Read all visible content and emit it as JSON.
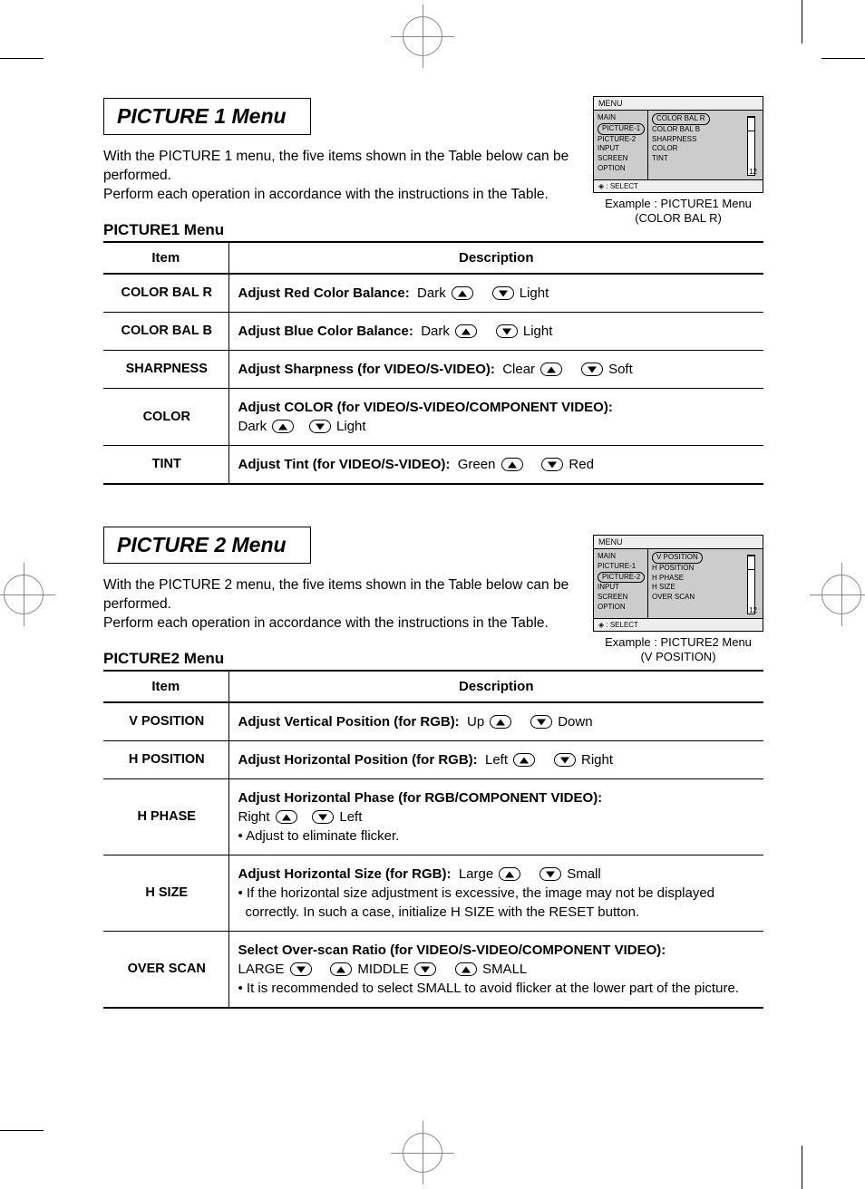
{
  "section1": {
    "title": "PICTURE 1 Menu",
    "intro": "With the PICTURE 1 menu, the five items shown in the Table below can be performed.\nPerform each operation in accordance with the instructions in the Table.",
    "subhead": "PICTURE1 Menu",
    "th_item": "Item",
    "th_desc": "Description",
    "rows": [
      {
        "item": "COLOR BAL R",
        "label": "Adjust Red Color Balance:",
        "left": "Dark",
        "right": "Light"
      },
      {
        "item": "COLOR BAL B",
        "label": "Adjust Blue Color Balance:",
        "left": "Dark",
        "right": "Light"
      },
      {
        "item": "SHARPNESS",
        "label": "Adjust Sharpness (for VIDEO/S-VIDEO):",
        "left": "Clear",
        "right": "Soft"
      },
      {
        "item": "COLOR",
        "label": "Adjust COLOR (for VIDEO/S-VIDEO/COMPONENT VIDEO):",
        "left": "Dark",
        "right": "Light",
        "wrap": true
      },
      {
        "item": "TINT",
        "label": "Adjust Tint (for VIDEO/S-VIDEO):",
        "left": "Green",
        "right": "Red"
      }
    ]
  },
  "section2": {
    "title": "PICTURE 2 Menu",
    "intro": "With the PICTURE 2 menu, the five items shown in the Table below can be performed.\nPerform each operation in accordance with the instructions in the Table.",
    "subhead": "PICTURE2 Menu",
    "th_item": "Item",
    "th_desc": "Description",
    "rows": [
      {
        "item": "V POSITION",
        "label": "Adjust Vertical Position (for RGB):",
        "left": "Up",
        "right": "Down"
      },
      {
        "item": "H POSITION",
        "label": "Adjust Horizontal Position (for RGB):",
        "left": "Left",
        "right": "Right"
      },
      {
        "item": "H PHASE",
        "label": "Adjust Horizontal Phase (for RGB/COMPONENT VIDEO):",
        "left": "Right",
        "right": "Left",
        "wrap": true,
        "notes": [
          "• Adjust to eliminate flicker."
        ]
      },
      {
        "item": "H SIZE",
        "label": "Adjust Horizontal Size (for RGB):",
        "left": "Large",
        "right": "Small",
        "notes": [
          "• If the horizontal size adjustment is excessive, the image may not be displayed correctly. In such a case, initialize H SIZE with the RESET button."
        ]
      }
    ],
    "overscan": {
      "item": "OVER SCAN",
      "label": "Select Over-scan Ratio (for VIDEO/S-VIDEO/COMPONENT VIDEO):",
      "opt1": "LARGE",
      "opt2": "MIDDLE",
      "opt3": "SMALL",
      "notes": [
        "• It is recommended to select SMALL to avoid flicker at the lower part of the picture."
      ]
    }
  },
  "osd1": {
    "header": "MENU",
    "left": [
      "MAIN",
      "PICTURE-1",
      "PICTURE-2",
      "INPUT",
      "SCREEN",
      "OPTION"
    ],
    "left_active_index": 1,
    "right": [
      "COLOR BAL R",
      "COLOR BAL B",
      "SHARPNESS",
      "COLOR",
      "TINT"
    ],
    "right_active_index": 0,
    "value": "12",
    "footer": "◈ : SELECT",
    "caption1": "Example : PICTURE1 Menu",
    "caption2": "(COLOR BAL R)"
  },
  "osd2": {
    "header": "MENU",
    "left": [
      "MAIN",
      "PICTURE-1",
      "PICTURE-2",
      "INPUT",
      "SCREEN",
      "OPTION"
    ],
    "left_active_index": 2,
    "right": [
      "V POSITION",
      "H POSITION",
      "H PHASE",
      "H SIZE",
      "OVER SCAN"
    ],
    "right_active_index": 0,
    "value": "12",
    "footer": "◈ : SELECT",
    "caption1": "Example : PICTURE2 Menu",
    "caption2": "(V POSITION)"
  }
}
